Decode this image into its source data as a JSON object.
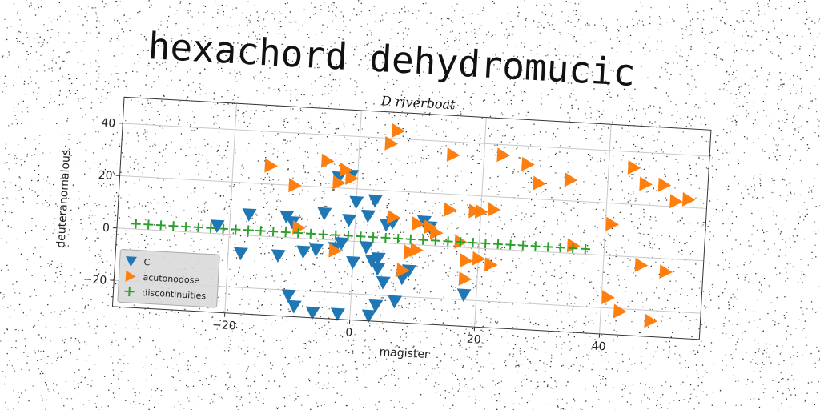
{
  "title": "hexachord dehydromucic",
  "chart_data": {
    "type": "scatter",
    "title": "D riverboat",
    "xlabel": "magister",
    "ylabel": "deuteranomalous",
    "xlim": [
      -38,
      56
    ],
    "ylim": [
      -30,
      50
    ],
    "xticks": [
      -20,
      0,
      20,
      40
    ],
    "yticks": [
      -20,
      0,
      20,
      40
    ],
    "xtick_labels": [
      "−20",
      "0",
      "20",
      "40"
    ],
    "ytick_labels": [
      "−20",
      "0",
      "20",
      "40"
    ],
    "grid": true,
    "legend_position": "lower-left",
    "series": [
      {
        "name": "C",
        "marker": "triangle-down",
        "color": "#1f77b4",
        "points": [
          [
            -22,
            3
          ],
          [
            -17,
            8
          ],
          [
            -18,
            -7
          ],
          [
            -11,
            8
          ],
          [
            -10,
            6
          ],
          [
            -8,
            -5
          ],
          [
            -6,
            -4
          ],
          [
            -5,
            10
          ],
          [
            -3,
            -3
          ],
          [
            -2,
            -1
          ],
          [
            -1,
            8
          ],
          [
            -1,
            25
          ],
          [
            0,
            -8
          ],
          [
            2,
            10
          ],
          [
            3,
            16
          ],
          [
            4,
            -10
          ],
          [
            4,
            -6
          ],
          [
            5,
            -15
          ],
          [
            5,
            7
          ],
          [
            6,
            8
          ],
          [
            7,
            -22
          ],
          [
            8,
            -13
          ],
          [
            9,
            -10
          ],
          [
            11,
            9
          ],
          [
            12,
            7
          ],
          [
            18,
            -18
          ],
          [
            -9,
            -26
          ],
          [
            -6,
            -28
          ],
          [
            -2,
            -28
          ],
          [
            3,
            -28
          ],
          [
            4,
            -24
          ],
          [
            -12,
            -7
          ],
          [
            -10,
            -22
          ],
          [
            0,
            15
          ],
          [
            -3,
            24
          ],
          [
            3,
            -7
          ],
          [
            2,
            -2
          ]
        ]
      },
      {
        "name": "acutonodose",
        "marker": "triangle-right",
        "color": "#ff7f0e",
        "points": [
          [
            6,
            43
          ],
          [
            5,
            38
          ],
          [
            15,
            35
          ],
          [
            23,
            36
          ],
          [
            27,
            33
          ],
          [
            29,
            26
          ],
          [
            34,
            28
          ],
          [
            44,
            34
          ],
          [
            46,
            28
          ],
          [
            49,
            28
          ],
          [
            51,
            22
          ],
          [
            53,
            23
          ],
          [
            -14,
            27
          ],
          [
            -10,
            20
          ],
          [
            -5,
            30
          ],
          [
            -3,
            22
          ],
          [
            -2,
            27
          ],
          [
            -1,
            24
          ],
          [
            6,
            10
          ],
          [
            10,
            8
          ],
          [
            13,
            5
          ],
          [
            15,
            14
          ],
          [
            19,
            14
          ],
          [
            20,
            14
          ],
          [
            22,
            15
          ],
          [
            41,
            12
          ],
          [
            9,
            -3
          ],
          [
            10,
            -2
          ],
          [
            17,
            2
          ],
          [
            18,
            -5
          ],
          [
            20,
            -4
          ],
          [
            22,
            -6
          ],
          [
            18,
            -12
          ],
          [
            41,
            -16
          ],
          [
            43,
            -21
          ],
          [
            48,
            -24
          ],
          [
            46,
            -3
          ],
          [
            50,
            -5
          ],
          [
            35,
            3
          ],
          [
            -3,
            -4
          ],
          [
            -9,
            4
          ],
          [
            12,
            7
          ],
          [
            8,
            -10
          ]
        ]
      },
      {
        "name": "discontinuities",
        "marker": "plus",
        "color": "#2ca02c",
        "points": [
          [
            -35,
            2.0
          ],
          [
            -33,
            2.0
          ],
          [
            -31,
            2.0
          ],
          [
            -29,
            2.0
          ],
          [
            -27,
            2.0
          ],
          [
            -25,
            2.0
          ],
          [
            -23,
            2.0
          ],
          [
            -21,
            2.0
          ],
          [
            -19,
            2.0
          ],
          [
            -17,
            2.0
          ],
          [
            -15,
            2.0
          ],
          [
            -13,
            2.0
          ],
          [
            -11,
            2.0
          ],
          [
            -9,
            2.0
          ],
          [
            -7,
            2.0
          ],
          [
            -5,
            2.0
          ],
          [
            -3,
            2.0
          ],
          [
            -1,
            2.0
          ],
          [
            1,
            2.0
          ],
          [
            3,
            2.0
          ],
          [
            5,
            2.0
          ],
          [
            7,
            2.0
          ],
          [
            9,
            2.0
          ],
          [
            11,
            2.0
          ],
          [
            13,
            2.0
          ],
          [
            15,
            2.0
          ],
          [
            17,
            2.0
          ],
          [
            19,
            2.0
          ],
          [
            21,
            2.0
          ],
          [
            23,
            2.0
          ],
          [
            25,
            2.0
          ],
          [
            27,
            2.0
          ],
          [
            29,
            2.0
          ],
          [
            31,
            2.0
          ],
          [
            33,
            2.0
          ],
          [
            35,
            2.0
          ],
          [
            37,
            2.0
          ]
        ]
      }
    ]
  }
}
